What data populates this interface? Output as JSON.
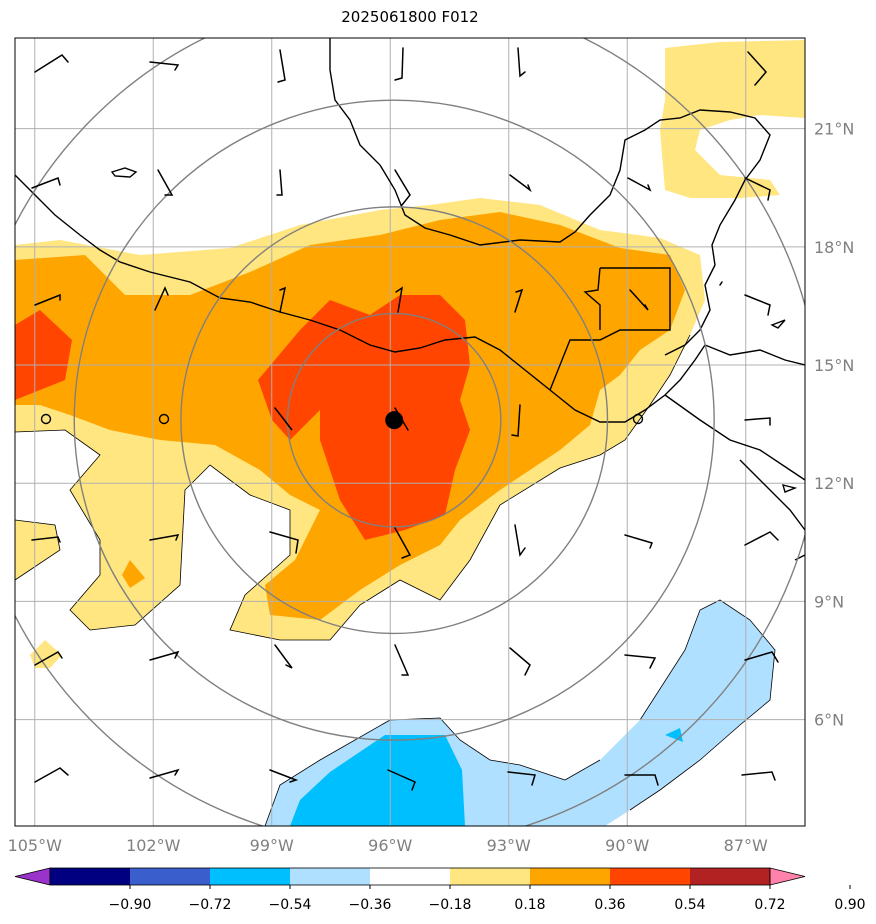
{
  "title": "2025061800 F012",
  "map": {
    "lon_range": [
      -105.5,
      -85.5
    ],
    "lat_range": [
      3.3,
      23.3
    ],
    "lon_ticks": [
      -105,
      -102,
      -99,
      -96,
      -93,
      -90,
      -87
    ],
    "lon_labels": [
      "105°W",
      "102°W",
      "99°W",
      "96°W",
      "93°W",
      "90°W",
      "87°W"
    ],
    "lat_ticks": [
      6,
      9,
      12,
      15,
      18,
      21
    ],
    "lat_labels": [
      "6°N",
      "9°N",
      "12°N",
      "15°N",
      "18°N",
      "21°N"
    ],
    "grid": true,
    "storm_center": {
      "lon": -95.9,
      "lat": 13.6
    },
    "range_rings_deg": [
      2.7,
      5.4,
      8.1,
      10.8
    ]
  },
  "colorbar": {
    "ticks": [
      "−0.90",
      "−0.72",
      "−0.54",
      "−0.36",
      "−0.18",
      "0.18",
      "0.36",
      "0.54",
      "0.72",
      "0.90"
    ],
    "colors": [
      "#9933cc",
      "#000080",
      "#3a5fcd",
      "#00bfff",
      "#b0e0ff",
      "#ffffff",
      "#ffe680",
      "#ffa500",
      "#ff4500",
      "#b22222",
      "#ff82ab"
    ],
    "extend": "both"
  },
  "colors": {
    "light_yellow": "#ffe680",
    "orange": "#ffa500",
    "red_orange": "#ff4500",
    "light_blue": "#b0e0ff",
    "deep_sky_blue": "#00bfff",
    "grid": "#b0b0b0",
    "rings": "#808080",
    "coast": "#000000"
  }
}
